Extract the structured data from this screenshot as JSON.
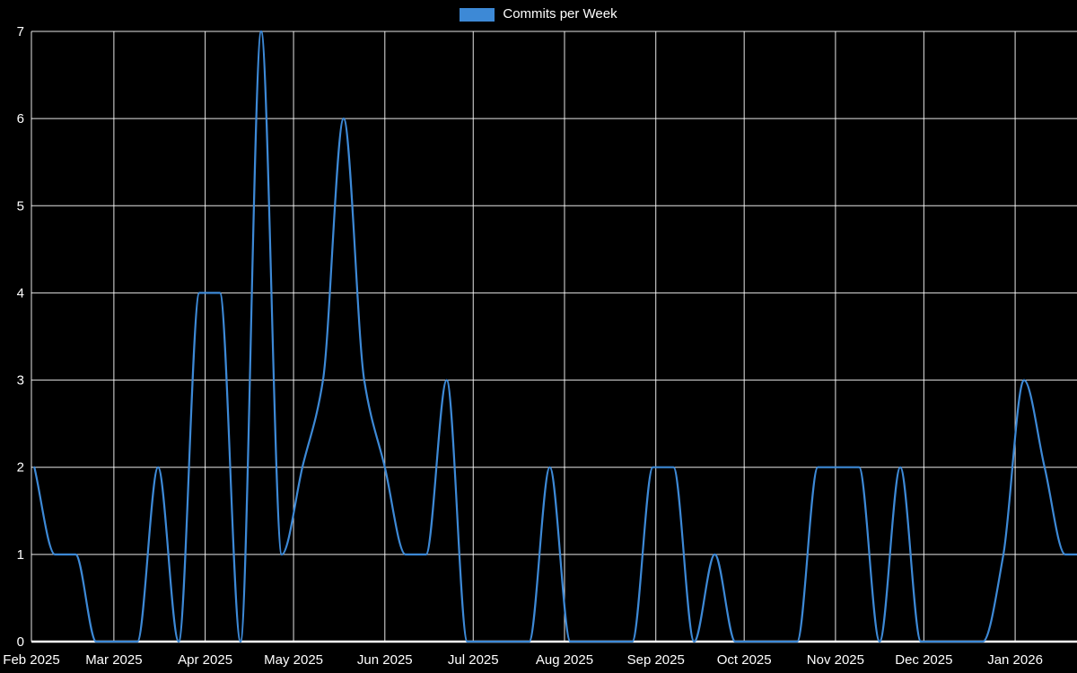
{
  "page": {
    "background": "#000000"
  },
  "legend": {
    "label": "Commits per Week",
    "swatch_color": "#3d89d6"
  },
  "chart_data": {
    "type": "line",
    "title": "Commits per Week",
    "legend_position": "top",
    "grid": true,
    "background_color": "#000000",
    "grid_color": "#ffffff",
    "text_color": "#ffffff",
    "ylim": [
      0,
      7
    ],
    "y_ticks": [
      0,
      1,
      2,
      3,
      4,
      5,
      6,
      7
    ],
    "xlabel": "",
    "ylabel": "",
    "x_domain": [
      "2025-02-01",
      "2026-01-22"
    ],
    "x_ticks": [
      {
        "label": "Feb 2025",
        "date": "2025-02-01"
      },
      {
        "label": "Mar 2025",
        "date": "2025-03-01"
      },
      {
        "label": "Apr 2025",
        "date": "2025-04-01"
      },
      {
        "label": "May 2025",
        "date": "2025-05-01"
      },
      {
        "label": "Jun 2025",
        "date": "2025-06-01"
      },
      {
        "label": "Jul 2025",
        "date": "2025-07-01"
      },
      {
        "label": "Aug 2025",
        "date": "2025-08-01"
      },
      {
        "label": "Sep 2025",
        "date": "2025-09-01"
      },
      {
        "label": "Oct 2025",
        "date": "2025-10-01"
      },
      {
        "label": "Nov 2025",
        "date": "2025-11-01"
      },
      {
        "label": "Dec 2025",
        "date": "2025-12-01"
      },
      {
        "label": "Jan 2026",
        "date": "2026-01-01"
      }
    ],
    "series": [
      {
        "name": "Commits per Week",
        "color": "#3d89d6",
        "start_week": "2025-02-02",
        "week_interval_days": 7,
        "values": [
          2,
          1,
          1,
          0,
          0,
          0,
          2,
          0,
          4,
          4,
          0,
          7,
          1,
          2,
          3,
          6,
          3,
          2,
          1,
          1,
          3,
          0,
          0,
          0,
          0,
          2,
          0,
          0,
          0,
          0,
          2,
          2,
          0,
          1,
          0,
          0,
          0,
          0,
          2,
          2,
          2,
          0,
          2,
          0,
          0,
          0,
          0,
          1,
          3,
          2,
          1,
          1
        ]
      }
    ]
  }
}
